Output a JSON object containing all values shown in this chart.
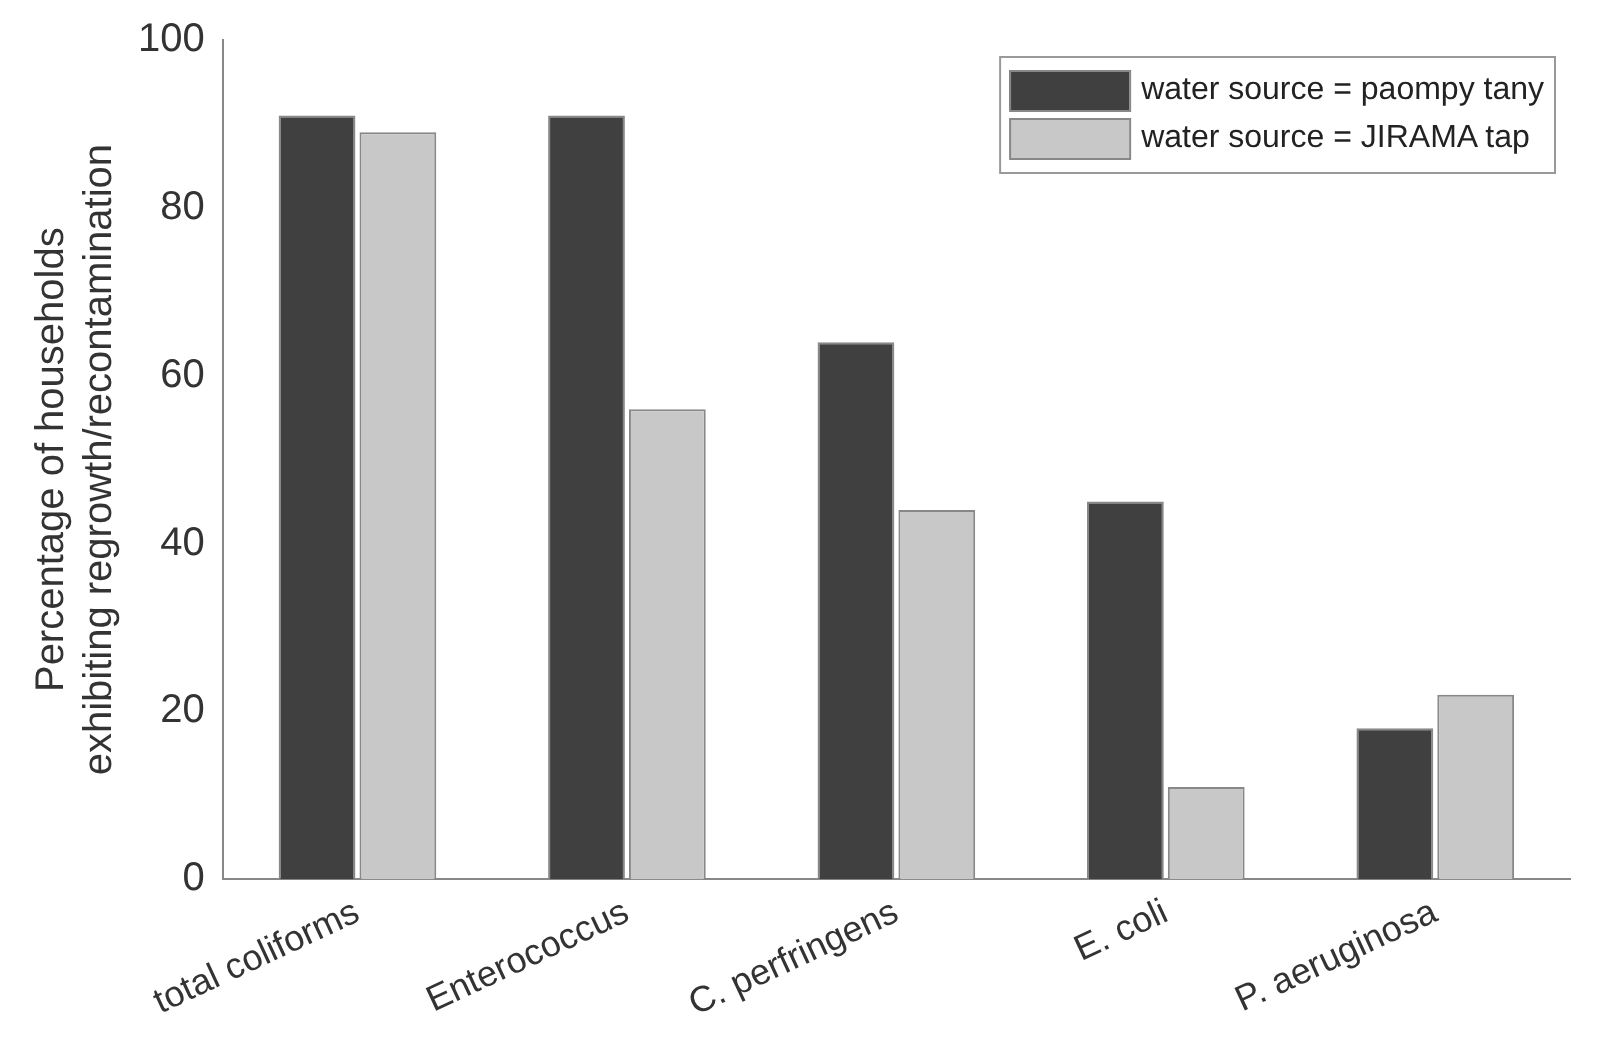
{
  "chart_data": {
    "type": "bar",
    "ylabel": "Percentage of households\nexhibiting regrowth/recontamination",
    "categories": [
      "total coliforms",
      "Enterococcus",
      "C. perfringens",
      "E. coli",
      "P. aeruginosa"
    ],
    "series": [
      {
        "name": "water source = paompy tany",
        "color": "#404040",
        "values": [
          91,
          91,
          64,
          45,
          18
        ]
      },
      {
        "name": "water source = JIRAMA tap",
        "color": "#c8c8c8",
        "values": [
          89,
          56,
          44,
          11,
          22
        ]
      }
    ],
    "ylim": [
      0,
      100
    ],
    "yticks": [
      0,
      20,
      40,
      60,
      80,
      100
    ],
    "grid": false,
    "legend": "top right"
  }
}
